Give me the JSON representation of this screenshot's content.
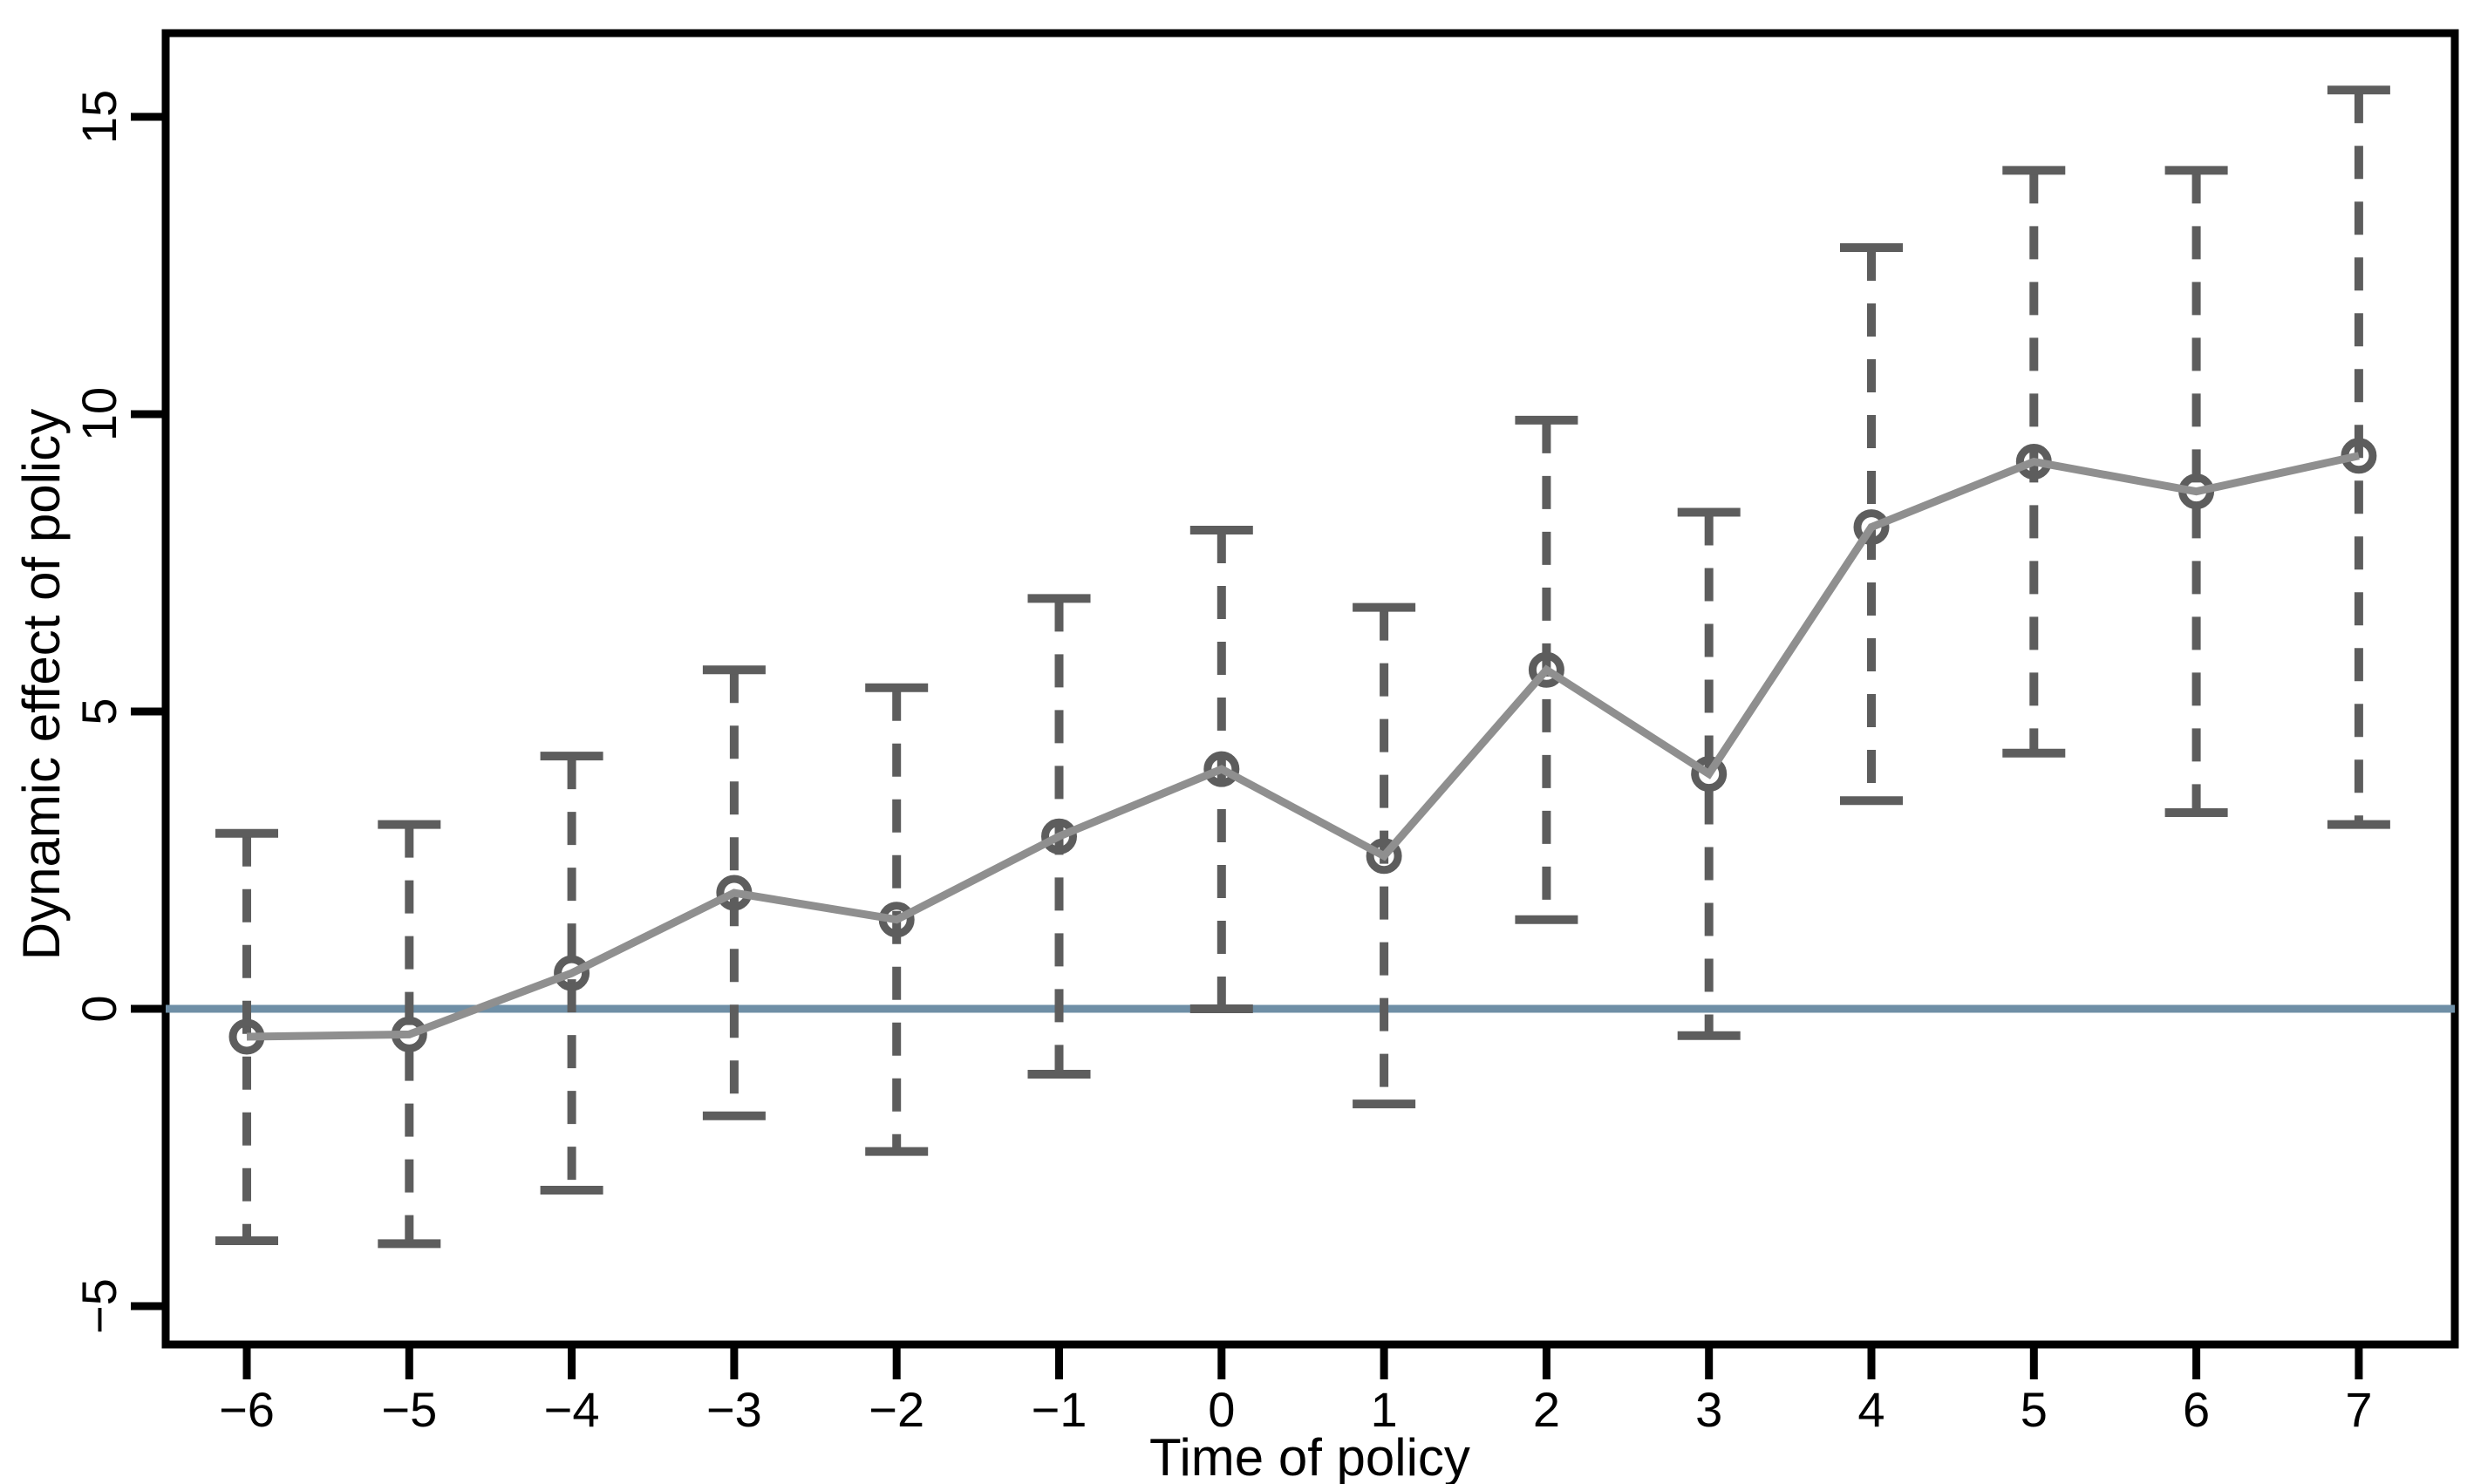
{
  "figure": {
    "background": "#ffffff",
    "frame_color": "#000000"
  },
  "chart_data": {
    "type": "line",
    "title": "",
    "xlabel": "Time of policy",
    "ylabel": "Dynamic effect of policy",
    "x": [
      -6,
      -5,
      -4,
      -3,
      -2,
      -1,
      0,
      1,
      2,
      3,
      4,
      5,
      6,
      7
    ],
    "series": [
      {
        "name": "point-estimate",
        "marker": "open-circle",
        "values": [
          -0.47,
          -0.43,
          0.6,
          1.95,
          1.5,
          2.9,
          4.03,
          2.57,
          5.7,
          3.95,
          8.1,
          9.2,
          8.7,
          9.3
        ]
      },
      {
        "name": "ci-lower",
        "style": "dashed-cap",
        "values": [
          -3.9,
          -3.95,
          -3.05,
          -1.8,
          -2.4,
          -1.1,
          0.0,
          -1.6,
          1.5,
          -0.45,
          3.5,
          4.3,
          3.3,
          3.1
        ]
      },
      {
        "name": "ci-upper",
        "style": "dashed-cap",
        "values": [
          2.95,
          3.1,
          4.25,
          5.7,
          5.4,
          6.9,
          8.05,
          6.75,
          9.9,
          8.35,
          12.8,
          14.1,
          14.1,
          15.45
        ]
      }
    ],
    "reference_line_y": 0,
    "xtick_labels": [
      "−6",
      "−5",
      "−4",
      "−3",
      "−2",
      "−1",
      "0",
      "1",
      "2",
      "3",
      "4",
      "5",
      "6",
      "7"
    ],
    "ytick_values": [
      -5,
      0,
      5,
      10,
      15
    ],
    "ytick_labels": [
      "−5",
      "0",
      "5",
      "10",
      "15"
    ],
    "ylim": [
      -5.65,
      16.4
    ],
    "xlim": [
      -6.5,
      7.6
    ],
    "grid": false,
    "legend": "none",
    "colors": {
      "marker": "#5d5d5d",
      "ci": "#5d5d5d",
      "connect_line": "#8f8f8f",
      "zero_line": "#6f8fa6",
      "axis": "#000000"
    }
  }
}
